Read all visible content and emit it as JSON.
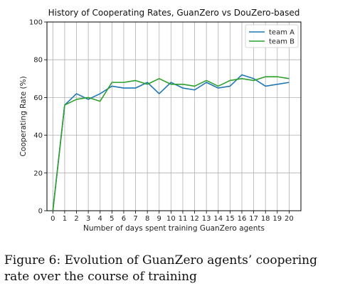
{
  "chart_data": {
    "type": "line",
    "title": "History of Cooperating Rates, GuanZero vs DouZero-based",
    "xlabel": "Number of days spent training GuanZero agents",
    "ylabel": "Cooperating Rate (%)",
    "x": [
      0,
      1,
      2,
      3,
      4,
      5,
      6,
      7,
      8,
      9,
      10,
      11,
      12,
      13,
      14,
      15,
      16,
      17,
      18,
      19,
      20
    ],
    "xlim": [
      -0.5,
      21
    ],
    "ylim": [
      0,
      100
    ],
    "xticks": [
      0,
      1,
      2,
      3,
      4,
      5,
      6,
      7,
      8,
      9,
      10,
      11,
      12,
      13,
      14,
      15,
      16,
      17,
      18,
      19,
      20
    ],
    "yticks": [
      0,
      20,
      40,
      60,
      80,
      100
    ],
    "grid": true,
    "legend_position": "top-right",
    "series": [
      {
        "name": "team A",
        "color": "#1f77b4",
        "values": [
          0,
          56,
          62,
          59,
          62,
          66,
          65,
          65,
          68,
          62,
          68,
          65,
          64,
          68,
          65,
          66,
          72,
          70,
          66,
          67,
          68
        ]
      },
      {
        "name": "team B",
        "color": "#2ca02c",
        "values": [
          0,
          56,
          59,
          60,
          58,
          68,
          68,
          69,
          67,
          70,
          67,
          67,
          66,
          69,
          66,
          69,
          70,
          69,
          71,
          71,
          70
        ]
      }
    ]
  },
  "caption": "Figure 6: Evolution of GuanZero agents’ coopering rate over the course of training"
}
